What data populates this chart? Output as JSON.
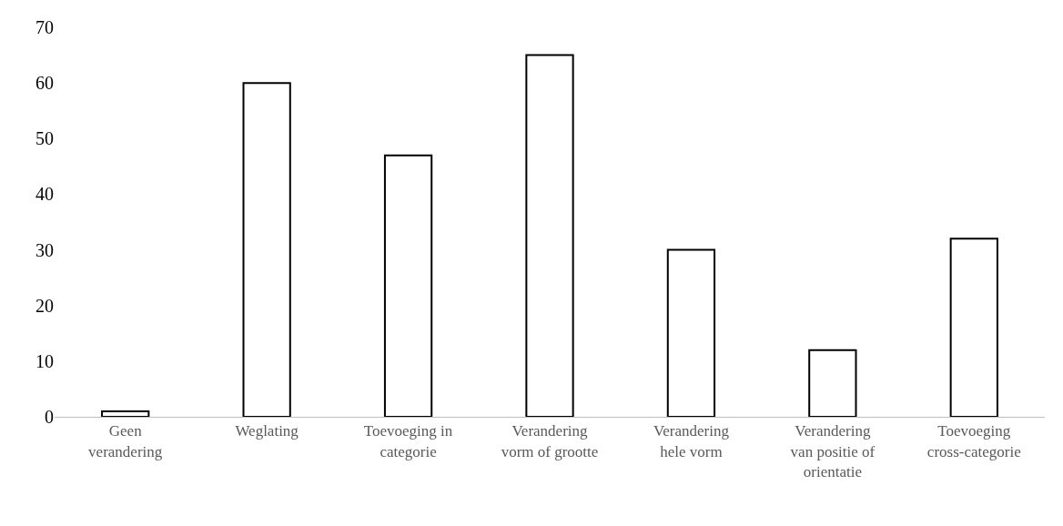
{
  "chart_data": {
    "type": "bar",
    "categories": [
      "Geen\nverandering",
      "Weglating",
      "Toevoeging in\ncategorie",
      "Verandering\nvorm of grootte",
      "Verandering\nhele vorm",
      "Verandering\nvan positie of\norientatie",
      "Toevoeging\ncross-categorie"
    ],
    "values": [
      1,
      60,
      47,
      65,
      30,
      12,
      32
    ],
    "color": "#ffffff",
    "ylim": [
      0,
      70
    ],
    "yticks": [
      0,
      10,
      20,
      30,
      40,
      50,
      60,
      70
    ],
    "grid": false,
    "legend": false
  }
}
